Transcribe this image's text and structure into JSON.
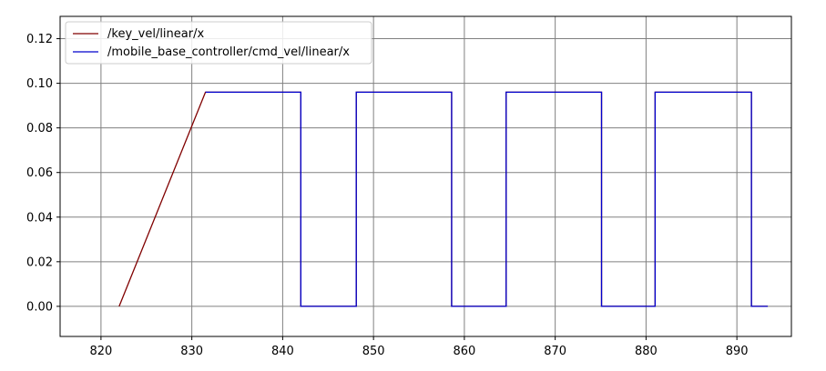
{
  "chart_data": {
    "type": "line",
    "title": "",
    "xlabel": "",
    "ylabel": "",
    "xlim": [
      815.5,
      896
    ],
    "ylim": [
      -0.0135,
      0.13
    ],
    "grid": true,
    "legend_position": "upper-left",
    "x_ticks": [
      820,
      830,
      840,
      850,
      860,
      870,
      880,
      890
    ],
    "x_tick_labels": [
      "820",
      "830",
      "840",
      "850",
      "860",
      "870",
      "880",
      "890"
    ],
    "y_ticks": [
      0.0,
      0.02,
      0.04,
      0.06,
      0.08,
      0.1,
      0.12
    ],
    "y_tick_labels": [
      "0.00",
      "0.02",
      "0.04",
      "0.06",
      "0.08",
      "0.10",
      "0.12"
    ],
    "series": [
      {
        "name": "/key_vel/linear/x",
        "color": "#800000",
        "x": [
          822.0,
          831.5,
          842.0,
          842.0,
          848.1,
          848.1,
          858.6,
          858.6,
          864.6,
          864.6,
          875.1,
          875.1,
          881.0,
          881.0,
          891.6,
          891.6,
          893.4
        ],
        "y": [
          0.0,
          0.096,
          0.096,
          0.0,
          0.0,
          0.096,
          0.096,
          0.0,
          0.0,
          0.096,
          0.096,
          0.0,
          0.0,
          0.096,
          0.096,
          0.0,
          0.0
        ]
      },
      {
        "name": "/mobile_base_controller/cmd_vel/linear/x",
        "color": "#0000cc",
        "x": [
          831.5,
          842.0,
          842.0,
          848.1,
          848.1,
          858.6,
          858.6,
          864.6,
          864.6,
          875.1,
          875.1,
          881.0,
          881.0,
          891.6,
          891.6,
          893.4
        ],
        "y": [
          0.096,
          0.096,
          0.0,
          0.0,
          0.096,
          0.096,
          0.0,
          0.0,
          0.096,
          0.096,
          0.0,
          0.0,
          0.096,
          0.096,
          0.0,
          0.0
        ]
      }
    ]
  }
}
